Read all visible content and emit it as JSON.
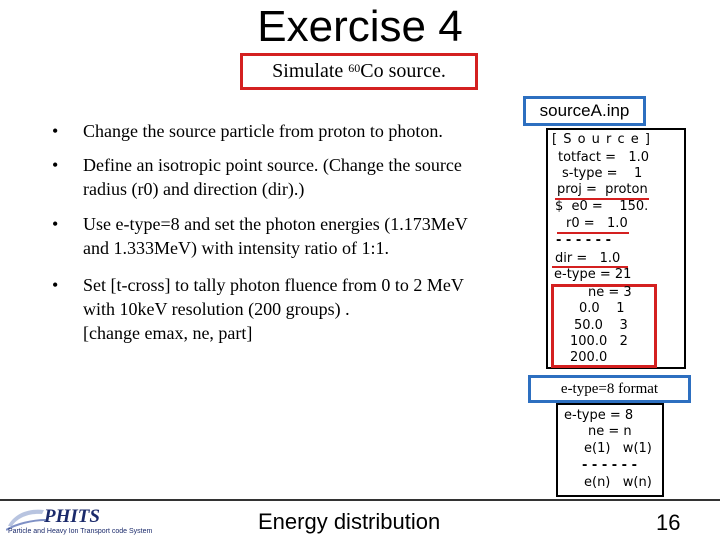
{
  "title": "Exercise 4",
  "subtitle": {
    "prefix": "Simulate ",
    "superscript": "60",
    "suffix": "Co source."
  },
  "bullets": [
    {
      "marker": "•",
      "lines": [
        "Change the source particle from proton to photon."
      ]
    },
    {
      "marker": "•",
      "lines": [
        "Define an isotropic point source. (Change the source",
        "radius (r0) and direction (dir).)"
      ]
    },
    {
      "marker": "•",
      "lines": [
        "Use e-type=8 and set the photon energies (1.173MeV",
        "and 1.333MeV) with intensity ratio of 1:1."
      ]
    },
    {
      "marker": "•",
      "lines": [
        "Set [t-cross] to tally photon fluence from 0 to 2 MeV",
        "with 10keV resolution (200 groups) .",
        "[change emax, ne, part]"
      ]
    }
  ],
  "input_file": {
    "label": "sourceA.inp",
    "lines": [
      "[ S o u r c e ]",
      "totfact =   1.0",
      "s-type =    1",
      "proj =  proton",
      "$  e0 =    150.",
      "r0 =   1.0",
      "- - - - - -",
      "dir =   1.0",
      "e-type = 21",
      "ne = 3",
      "0.0    1",
      "50.0    3",
      "100.0   2",
      "200.0"
    ]
  },
  "format_box": {
    "label": "e-type=8 format",
    "lines": [
      "e-type = 8",
      "ne = n",
      "e(1)   w(1)",
      "- - - - - -",
      "e(n)   w(n)"
    ]
  },
  "footer": {
    "logo_name": "PHITS",
    "logo_subtitle": "Particle and Heavy Ion Transport code System",
    "text": "Energy distribution",
    "page_number": "16"
  },
  "colors": {
    "highlight_red": "#d42020",
    "label_blue": "#2d6fc0",
    "logo_navy": "#1b2a6b"
  }
}
